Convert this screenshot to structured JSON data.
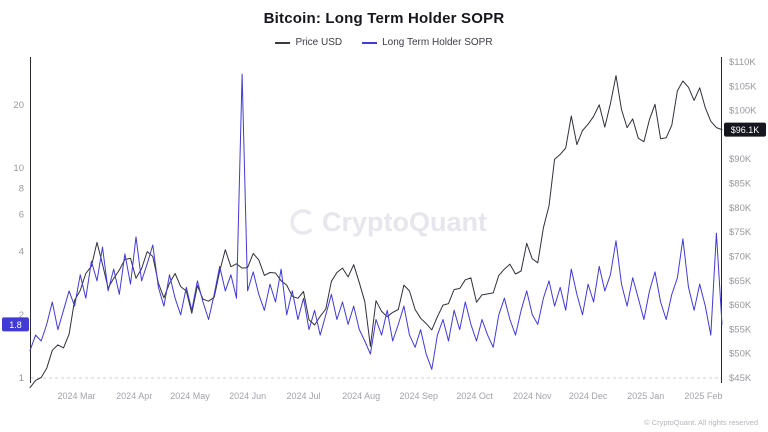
{
  "chart": {
    "title": "Bitcoin: Long Term Holder SOPR",
    "legend": [
      {
        "label": "Price USD",
        "color": "#3a3a44"
      },
      {
        "label": "Long Term Holder SOPR",
        "color": "#423ad4"
      }
    ],
    "watermark": "CryptoQuant",
    "footer": "© CryptoQuant. All rights reserved"
  },
  "chart_data": {
    "type": "line",
    "title": "Bitcoin: Long Term Holder SOPR",
    "x_unit": "days since 2024-02-01",
    "x_start_day": 4,
    "x_step_days": 3,
    "x_ticks": [
      {
        "day": 29,
        "label": "2024 Mar"
      },
      {
        "day": 60,
        "label": "2024 Apr"
      },
      {
        "day": 90,
        "label": "2024 May"
      },
      {
        "day": 121,
        "label": "2024 Jun"
      },
      {
        "day": 151,
        "label": "2024 Jul"
      },
      {
        "day": 182,
        "label": "2024 Aug"
      },
      {
        "day": 213,
        "label": "2024 Sep"
      },
      {
        "day": 243,
        "label": "2024 Oct"
      },
      {
        "day": 274,
        "label": "2024 Nov"
      },
      {
        "day": 304,
        "label": "2024 Dec"
      },
      {
        "day": 335,
        "label": "2025 Jan"
      },
      {
        "day": 366,
        "label": "2025 Feb"
      }
    ],
    "left_axis": {
      "scale": "log",
      "name": "Long Term Holder SOPR",
      "ticks": [
        {
          "value": 20,
          "label": "20"
        },
        {
          "value": 10,
          "label": "10"
        },
        {
          "value": 8,
          "label": "8"
        },
        {
          "value": 6,
          "label": "6"
        },
        {
          "value": 4,
          "label": "4"
        },
        {
          "value": 2,
          "label": "2"
        },
        {
          "value": 1,
          "label": "1"
        }
      ],
      "current": {
        "value": 1.8,
        "label": "1.8"
      }
    },
    "right_axis": {
      "scale": "linear",
      "name": "Price USD",
      "range": [
        45,
        110
      ],
      "ticks": [
        {
          "value": 110,
          "label": "$110K"
        },
        {
          "value": 105,
          "label": "$105K"
        },
        {
          "value": 100,
          "label": "$100K"
        },
        {
          "value": 90,
          "label": "$90K"
        },
        {
          "value": 85,
          "label": "$85K"
        },
        {
          "value": 80,
          "label": "$80K"
        },
        {
          "value": 75,
          "label": "$75K"
        },
        {
          "value": 70,
          "label": "$70K"
        },
        {
          "value": 65,
          "label": "$65K"
        },
        {
          "value": 60,
          "label": "$60K"
        },
        {
          "value": 55,
          "label": "$55K"
        },
        {
          "value": 50,
          "label": "$50K"
        },
        {
          "value": 45,
          "label": "$45K"
        }
      ],
      "current": {
        "value": 96.1,
        "label": "$96.1K"
      }
    },
    "reference_line": {
      "value": 1,
      "style": "dashed"
    },
    "series": [
      {
        "name": "Price USD",
        "axis": "right",
        "unit": "USD thousands",
        "color": "#30303a",
        "values": [
          43.0,
          44.5,
          45.1,
          47.0,
          50.7,
          51.8,
          51.2,
          54.0,
          61.0,
          63.0,
          66.5,
          68.0,
          72.9,
          68.4,
          63.5,
          65.5,
          67.2,
          69.4,
          69.6,
          65.5,
          67.5,
          71.0,
          70.0,
          64.5,
          61.5,
          64.5,
          66.5,
          63.8,
          62.9,
          58.3,
          64.0,
          61.2,
          60.8,
          61.6,
          67.0,
          71.4,
          67.9,
          68.5,
          67.6,
          67.7,
          70.6,
          69.3,
          66.1,
          66.7,
          66.6,
          65.0,
          64.1,
          61.8,
          61.4,
          62.8,
          57.0,
          55.9,
          57.7,
          59.2,
          64.9,
          66.7,
          67.6,
          65.8,
          68.3,
          64.6,
          60.7,
          51.5,
          60.9,
          58.7,
          57.6,
          58.5,
          59.1,
          64.1,
          62.9,
          59.1,
          57.3,
          56.2,
          54.9,
          57.6,
          60.0,
          60.3,
          63.2,
          63.4,
          65.2,
          65.6,
          60.6,
          62.1,
          62.3,
          62.5,
          66.1,
          67.4,
          68.4,
          66.4,
          67.0,
          72.7,
          69.5,
          68.7,
          75.9,
          80.4,
          90.0,
          91.0,
          92.3,
          98.9,
          93.0,
          95.9,
          97.2,
          98.8,
          101.2,
          96.6,
          101.4,
          107.2,
          100.2,
          96.5,
          98.3,
          94.3,
          93.6,
          98.2,
          101.3,
          94.2,
          94.4,
          97.0,
          104.1,
          106.1,
          104.8,
          102.1,
          104.7,
          100.6,
          97.8,
          96.5,
          96.1
        ]
      },
      {
        "name": "Long Term Holder SOPR",
        "axis": "left",
        "unit": "ratio",
        "color": "#423ad4",
        "values": [
          1.35,
          1.6,
          1.5,
          1.8,
          2.3,
          1.7,
          2.1,
          2.6,
          2.2,
          3.1,
          2.4,
          3.6,
          2.9,
          4.2,
          2.6,
          3.3,
          2.5,
          3.9,
          2.8,
          4.7,
          2.9,
          3.5,
          4.3,
          2.7,
          2.2,
          3.1,
          2.4,
          2.0,
          2.7,
          2.1,
          2.9,
          2.3,
          1.9,
          2.5,
          3.4,
          2.6,
          3.1,
          2.4,
          28.0,
          2.6,
          3.2,
          2.5,
          2.1,
          2.8,
          2.3,
          3.3,
          2.0,
          2.6,
          1.9,
          2.4,
          1.7,
          2.1,
          1.6,
          2.0,
          2.5,
          1.9,
          2.3,
          1.8,
          2.2,
          1.7,
          1.5,
          1.3,
          1.9,
          1.6,
          2.1,
          1.5,
          1.8,
          2.2,
          1.6,
          1.4,
          1.7,
          1.3,
          1.1,
          1.6,
          1.9,
          1.5,
          2.1,
          1.7,
          2.3,
          1.8,
          1.5,
          1.9,
          1.6,
          1.4,
          2.0,
          2.4,
          1.9,
          1.6,
          2.1,
          2.6,
          2.0,
          1.8,
          2.4,
          2.9,
          2.2,
          2.7,
          2.1,
          3.3,
          2.5,
          2.0,
          2.8,
          2.3,
          3.4,
          2.6,
          3.1,
          4.5,
          2.8,
          2.2,
          3.0,
          2.4,
          1.9,
          2.6,
          3.2,
          2.3,
          1.9,
          2.5,
          3.0,
          4.6,
          2.7,
          2.1,
          2.8,
          2.2,
          1.6,
          4.9,
          1.8
        ]
      }
    ]
  }
}
